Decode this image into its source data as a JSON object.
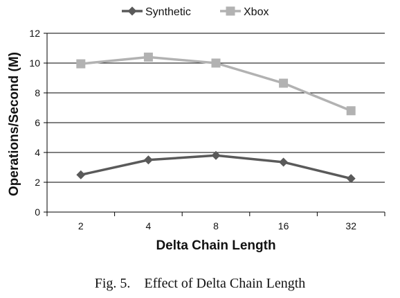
{
  "chart_data": {
    "type": "line",
    "categories": [
      "2",
      "4",
      "8",
      "16",
      "32"
    ],
    "series": [
      {
        "name": "Synthetic",
        "values": [
          2.5,
          3.5,
          3.8,
          3.35,
          2.25
        ],
        "color": "#5a5a5a",
        "marker": "diamond"
      },
      {
        "name": "Xbox",
        "values": [
          9.95,
          10.4,
          10.0,
          8.65,
          6.8
        ],
        "color": "#b2b2b2",
        "marker": "square"
      }
    ],
    "xlabel": "Delta Chain Length",
    "ylabel": "Operations/Second (M)",
    "ylim": [
      0,
      12
    ],
    "yticks": [
      0,
      2,
      4,
      6,
      8,
      10,
      12
    ],
    "grid": true,
    "legend": "top-center"
  },
  "caption": {
    "figure_label": "Fig. 5.",
    "text": "Effect of Delta Chain Length"
  }
}
